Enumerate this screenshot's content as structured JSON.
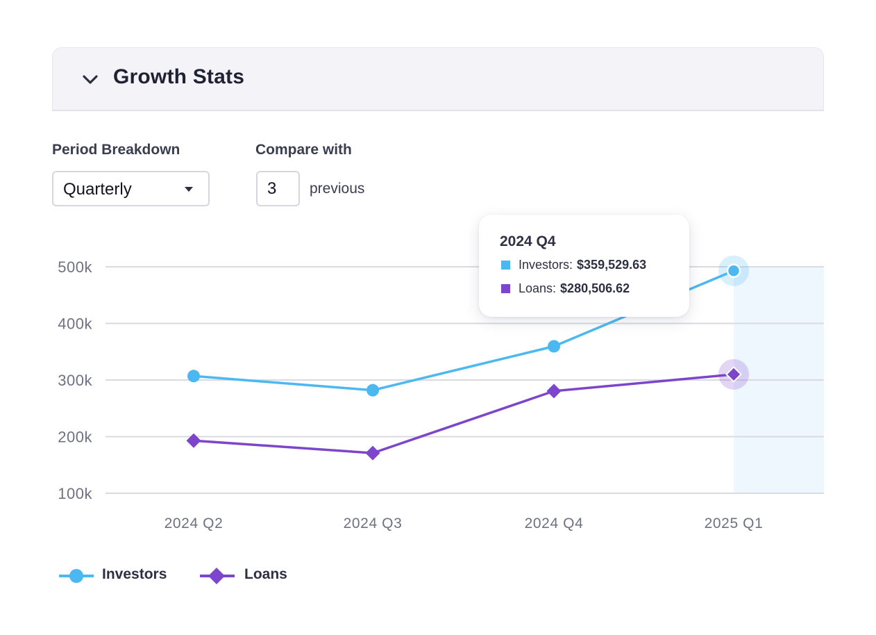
{
  "panel": {
    "title": "Growth Stats"
  },
  "controls": {
    "period_label": "Period Breakdown",
    "period_value": "Quarterly",
    "compare_label": "Compare with",
    "compare_value": "3",
    "compare_suffix": "previous"
  },
  "tooltip": {
    "title": "2024 Q4",
    "rows": [
      {
        "name": "Investors:",
        "value": "$359,529.63"
      },
      {
        "name": "Loans:",
        "value": "$280,506.62"
      }
    ]
  },
  "legend": {
    "items": [
      "Investors",
      "Loans"
    ]
  },
  "colors": {
    "investors": "#4cb8f2",
    "loans": "#7d45cc",
    "grid": "#d9dae2",
    "axis_text": "#6e7182",
    "highlight_band": "#eef6fe"
  },
  "chart_data": {
    "type": "line",
    "categories": [
      "2024 Q2",
      "2024 Q3",
      "2024 Q4",
      "2025 Q1"
    ],
    "series": [
      {
        "name": "Investors",
        "marker": "circle",
        "values": [
          307000,
          282000,
          359529.63,
          493000
        ]
      },
      {
        "name": "Loans",
        "marker": "diamond",
        "values": [
          193000,
          171000,
          280506.62,
          310000
        ]
      }
    ],
    "y_ticks": [
      100000,
      200000,
      300000,
      400000,
      500000
    ],
    "y_tick_labels": [
      "100k",
      "200k",
      "300k",
      "400k",
      "500k"
    ],
    "ylim": [
      100000,
      500000
    ],
    "highlighted_category": "2025 Q1",
    "grid": true,
    "legend_position": "bottom-left"
  }
}
